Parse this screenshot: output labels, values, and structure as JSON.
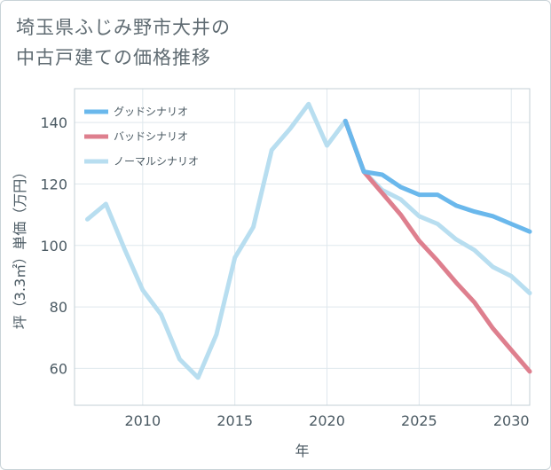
{
  "chart_data": {
    "type": "line",
    "title_lines": [
      "埼玉県ふじみ野市大井の",
      "中古戸建ての価格推移"
    ],
    "xlabel": "年",
    "ylabel": "坪（3.3㎡）単価（万円）",
    "xlim": [
      2006.3,
      2031.0
    ],
    "ylim": [
      48,
      151
    ],
    "xticks": [
      2010,
      2015,
      2020,
      2025,
      2030
    ],
    "yticks": [
      60,
      80,
      100,
      120,
      140
    ],
    "grid": true,
    "legend_position": "top-left",
    "series": [
      {
        "name": "グッドシナリオ",
        "color": "#6ab8ec",
        "x": [
          2021,
          2022,
          2023,
          2024,
          2025,
          2026,
          2027,
          2028,
          2029,
          2030,
          2031
        ],
        "y": [
          140.5,
          124,
          123,
          119,
          116.5,
          116.5,
          113,
          111,
          109.5,
          107,
          104.5
        ]
      },
      {
        "name": "バッドシナリオ",
        "color": "#de7f8e",
        "x": [
          2021,
          2022,
          2023,
          2024,
          2025,
          2026,
          2027,
          2028,
          2029,
          2030,
          2031
        ],
        "y": [
          140.5,
          124,
          117,
          110,
          101.5,
          95,
          88,
          81.5,
          73,
          66,
          59
        ]
      },
      {
        "name": "ノーマルシナリオ",
        "color": "#b8def0",
        "x": [
          2007,
          2008,
          2009,
          2010,
          2011,
          2012,
          2013,
          2014,
          2015,
          2016,
          2017,
          2018,
          2019,
          2020,
          2021,
          2022,
          2023,
          2024,
          2025,
          2026,
          2027,
          2028,
          2029,
          2030,
          2031
        ],
        "y": [
          108.5,
          113.5,
          99,
          85.5,
          77.5,
          63,
          57,
          71,
          96,
          106,
          131,
          138,
          146,
          132.5,
          140.5,
          124,
          118,
          115,
          109.5,
          107,
          102,
          98.5,
          93,
          90,
          84.5
        ]
      }
    ]
  }
}
